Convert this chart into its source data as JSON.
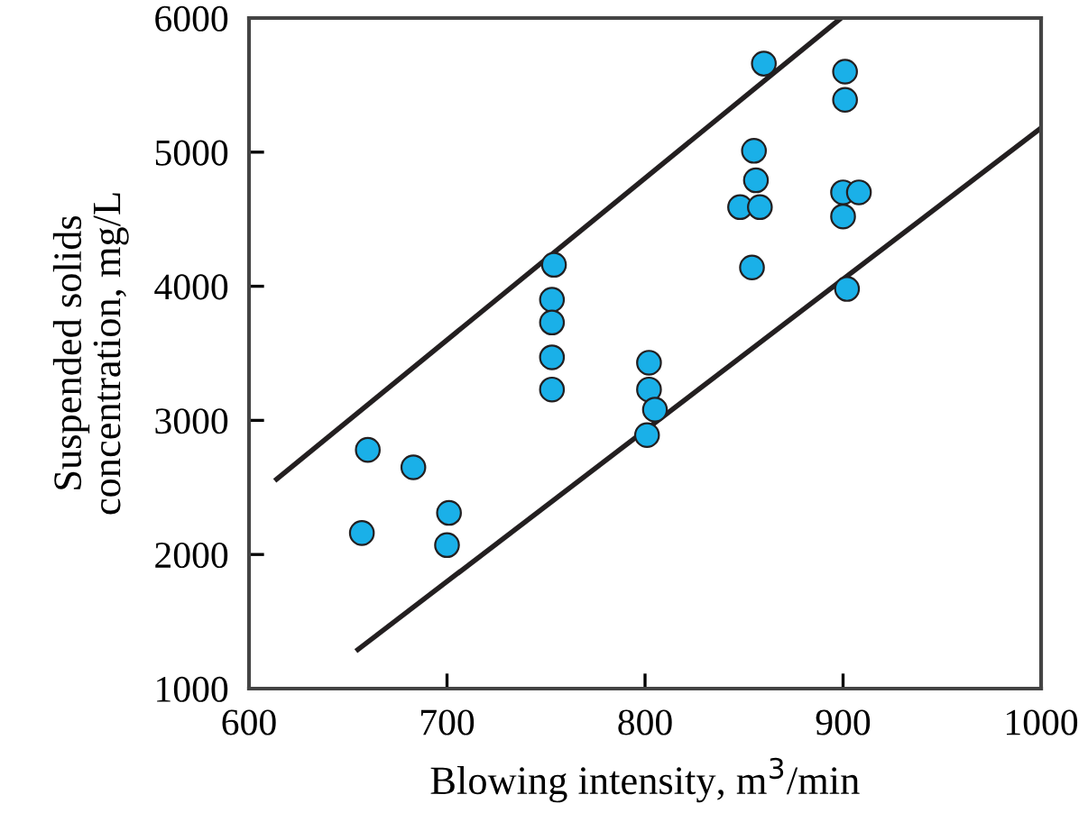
{
  "chart_data": {
    "type": "scatter",
    "xlabel": "Blowing intensity, m$^{3}$/min",
    "ylabel": "Suspended solids\nconcentration, mg/L",
    "xlim": [
      600,
      1000
    ],
    "ylim": [
      1000,
      6000
    ],
    "xticks": [
      600,
      700,
      800,
      900,
      1000
    ],
    "yticks": [
      1000,
      2000,
      3000,
      4000,
      5000,
      6000
    ],
    "grid": false,
    "legend": false,
    "series": [
      {
        "marker": "circle",
        "color": "#1ab0e8",
        "x": [
          660,
          657,
          683,
          701,
          700,
          754,
          753,
          753,
          753,
          753,
          802,
          802,
          805,
          801,
          860,
          855,
          856,
          848,
          858,
          854,
          901,
          901,
          900,
          908,
          900,
          902
        ],
        "values": [
          2780,
          2160,
          2650,
          2310,
          2070,
          4160,
          3900,
          3730,
          3470,
          3230,
          3430,
          3230,
          3080,
          2890,
          5660,
          5010,
          4790,
          4590,
          4590,
          4140,
          5600,
          5390,
          4700,
          4700,
          4520,
          3980
        ]
      },
      {
        "type": "line",
        "color": "#231f20",
        "marker": "none",
        "x": [
          613,
          899
        ],
        "values": [
          2550,
          6000
        ]
      },
      {
        "type": "line",
        "color": "#231f20",
        "marker": "none",
        "x": [
          654,
          1000
        ],
        "values": [
          1280,
          5180
        ]
      }
    ]
  }
}
